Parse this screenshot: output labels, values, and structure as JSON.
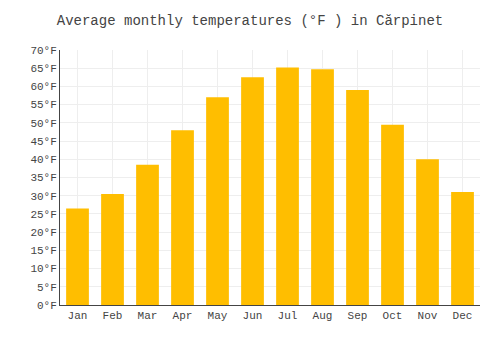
{
  "chart_data": {
    "type": "bar",
    "title": "Average monthly temperatures (°F ) in Cărpinet",
    "categories": [
      "Jan",
      "Feb",
      "Mar",
      "Apr",
      "May",
      "Jun",
      "Jul",
      "Aug",
      "Sep",
      "Oct",
      "Nov",
      "Dec"
    ],
    "values": [
      26.5,
      30.5,
      38.5,
      48.0,
      57.0,
      62.5,
      65.2,
      64.7,
      59.0,
      49.5,
      40.0,
      31.0
    ],
    "color": "#FFBE00",
    "ylim": [
      0,
      70
    ],
    "yticks": [
      {
        "value": 0,
        "label": "0°F"
      },
      {
        "value": 5,
        "label": "5°F"
      },
      {
        "value": 10,
        "label": "10°F"
      },
      {
        "value": 15,
        "label": "15°F"
      },
      {
        "value": 20,
        "label": "20°F"
      },
      {
        "value": 25,
        "label": "25°F"
      },
      {
        "value": 30,
        "label": "30°F"
      },
      {
        "value": 35,
        "label": "35°F"
      },
      {
        "value": 40,
        "label": "40°F"
      },
      {
        "value": 45,
        "label": "45°F"
      },
      {
        "value": 50,
        "label": "50°F"
      },
      {
        "value": 55,
        "label": "55°F"
      },
      {
        "value": 60,
        "label": "60°F"
      },
      {
        "value": 65,
        "label": "65°F"
      },
      {
        "value": 70,
        "label": "70°F"
      }
    ],
    "grid": true
  }
}
